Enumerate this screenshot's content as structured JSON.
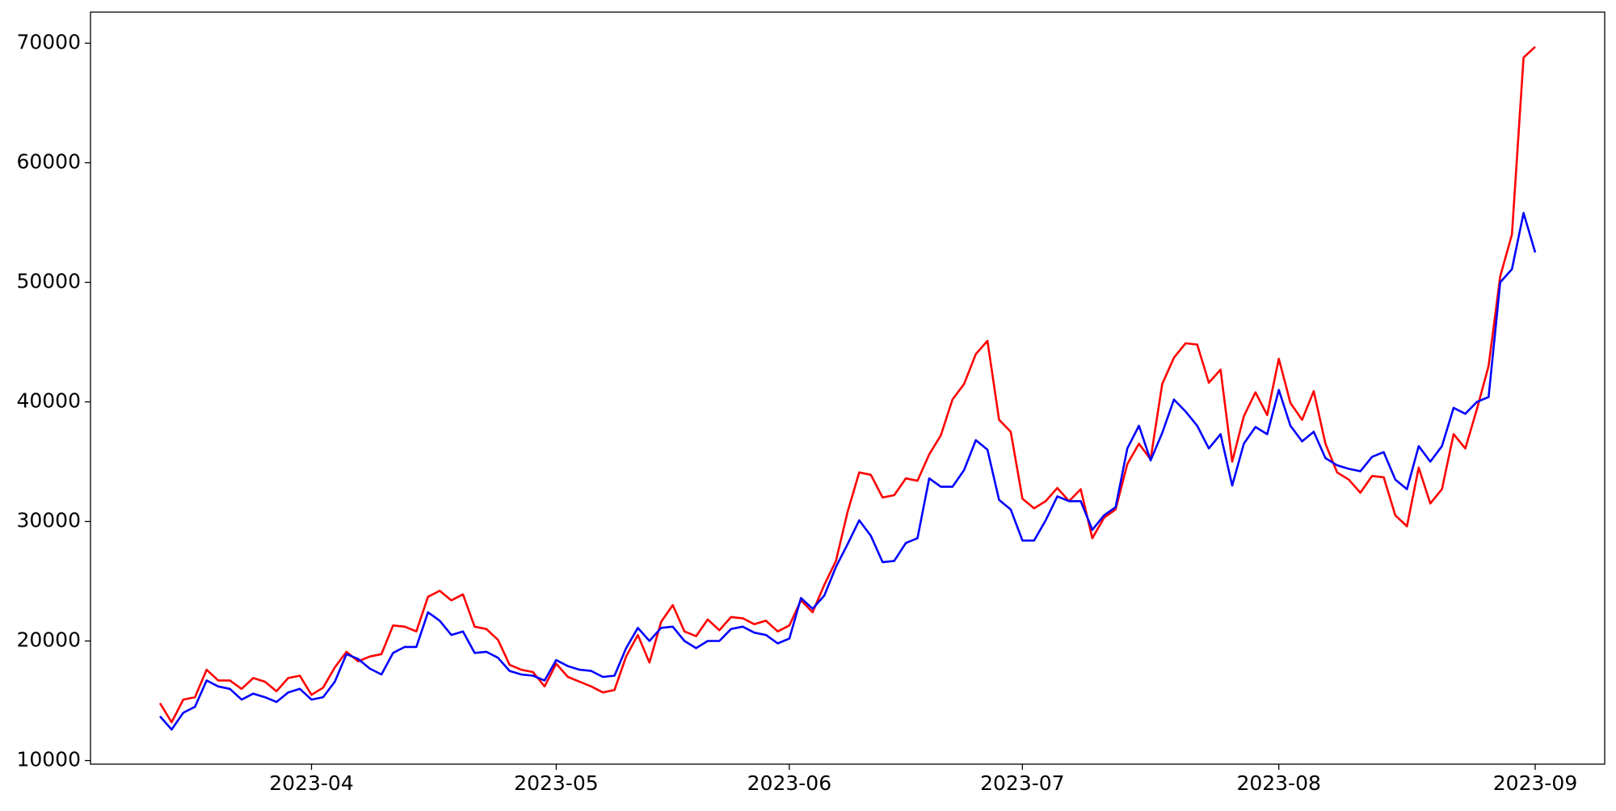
{
  "chart_data": {
    "type": "line",
    "categories": [
      null,
      null,
      null,
      null,
      null,
      null,
      null,
      null,
      null,
      null,
      null,
      null,
      null,
      "2023-04",
      null,
      null,
      null,
      null,
      null,
      null,
      null,
      null,
      null,
      null,
      null,
      null,
      null,
      null,
      null,
      null,
      null,
      null,
      null,
      null,
      "2023-05",
      null,
      null,
      null,
      null,
      null,
      null,
      null,
      null,
      null,
      null,
      null,
      null,
      null,
      null,
      null,
      null,
      null,
      null,
      null,
      "2023-06",
      null,
      null,
      null,
      null,
      null,
      null,
      null,
      null,
      null,
      null,
      null,
      null,
      null,
      null,
      null,
      null,
      null,
      null,
      null,
      "2023-07",
      null,
      null,
      null,
      null,
      null,
      null,
      null,
      null,
      null,
      null,
      null,
      null,
      null,
      null,
      null,
      null,
      null,
      null,
      null,
      null,
      null,
      "2023-08",
      null,
      null,
      null,
      null,
      null,
      null,
      null,
      null,
      null,
      null,
      null,
      null,
      null,
      null,
      null,
      null,
      null,
      null,
      null,
      null,
      null,
      "2023-09"
    ],
    "series": [
      {
        "color": "#ff0000",
        "values": [
          14800,
          13200,
          15100,
          15300,
          17600,
          16700,
          16700,
          16000,
          16900,
          16600,
          15800,
          16900,
          17100,
          15500,
          16100,
          17800,
          19100,
          18300,
          18700,
          18900,
          21300,
          21200,
          20800,
          23700,
          24200,
          23400,
          23900,
          21200,
          21000,
          20100,
          18000,
          17600,
          17400,
          16200,
          18100,
          17000,
          16600,
          16200,
          15700,
          15900,
          18700,
          20500,
          18200,
          21600,
          23000,
          20800,
          20400,
          21800,
          20900,
          22000,
          21900,
          21400,
          21700,
          20800,
          21300,
          23400,
          22400,
          24700,
          26700,
          30800,
          34100,
          33900,
          32000,
          32200,
          33600,
          33400,
          35600,
          37200,
          40200,
          41500,
          44000,
          45100,
          38500,
          37500,
          31900,
          31100,
          31700,
          32800,
          31700,
          32700,
          28600,
          30300,
          31000,
          34800,
          36500,
          35200,
          41500,
          43700,
          44900,
          44800,
          41600,
          42700,
          35000,
          38800,
          40800,
          38900,
          43600,
          39900,
          38500,
          40900,
          36500,
          34100,
          33500,
          32400,
          33800,
          33700,
          30500,
          29600,
          34500,
          31500,
          32700,
          37300,
          36100,
          39400,
          43000,
          50500,
          54000,
          68800,
          69700
        ]
      },
      {
        "color": "#0000ff",
        "values": [
          13700,
          12600,
          14000,
          14500,
          16700,
          16200,
          16000,
          15100,
          15600,
          15300,
          14900,
          15700,
          16000,
          15100,
          15300,
          16600,
          18900,
          18500,
          17700,
          17200,
          19000,
          19500,
          19500,
          22400,
          21700,
          20500,
          20800,
          19000,
          19100,
          18600,
          17500,
          17200,
          17100,
          16700,
          18400,
          17900,
          17600,
          17500,
          17000,
          17100,
          19400,
          21100,
          20000,
          21100,
          21200,
          20000,
          19400,
          20000,
          20000,
          21000,
          21200,
          20700,
          20500,
          19800,
          20200,
          23600,
          22700,
          23800,
          26200,
          28100,
          30100,
          28800,
          26600,
          26700,
          28200,
          28600,
          33600,
          32900,
          32900,
          34300,
          36800,
          36000,
          31800,
          31000,
          28400,
          28400,
          30100,
          32100,
          31700,
          31700,
          29300,
          30500,
          31200,
          36100,
          38000,
          35100,
          37400,
          40200,
          39200,
          38000,
          36100,
          37300,
          33000,
          36500,
          37900,
          37300,
          41000,
          38000,
          36700,
          37500,
          35300,
          34700,
          34400,
          34200,
          35400,
          35800,
          33500,
          32700,
          36300,
          35000,
          36300,
          39500,
          39000,
          40000,
          40400,
          50000,
          51100,
          55800,
          52500
        ]
      }
    ],
    "ylim": [
      9700,
      72600
    ],
    "yticks": [
      10000,
      20000,
      30000,
      40000,
      50000,
      60000,
      70000
    ]
  }
}
